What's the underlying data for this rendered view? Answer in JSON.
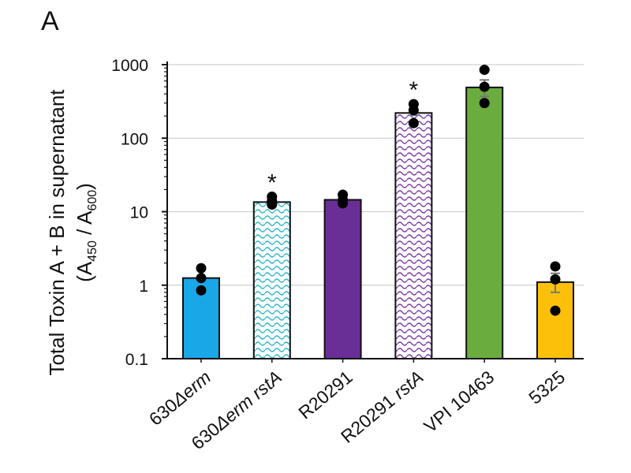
{
  "panel_label": "A",
  "chart_data": {
    "type": "bar",
    "yscale": "log",
    "ylim": [
      0.1,
      1000
    ],
    "yticks": [
      {
        "value": 0.1,
        "label": "0.1"
      },
      {
        "value": 1,
        "label": "1"
      },
      {
        "value": 10,
        "label": "10"
      },
      {
        "value": 100,
        "label": "100"
      },
      {
        "value": 1000,
        "label": "1000"
      }
    ],
    "ylabel_line1": "Total Toxin A + B in supernatant",
    "ylabel_line2": {
      "open": "(A",
      "sub1": "450",
      "mid": " / A",
      "sub2": "600",
      "close": ")"
    },
    "grid": true,
    "categories": [
      {
        "id": "630erm",
        "parts": [
          {
            "t": "630",
            "i": false
          },
          {
            "t": "Δ",
            "i": true
          },
          {
            "t": "erm",
            "i": true
          }
        ]
      },
      {
        "id": "630erm-rsta",
        "parts": [
          {
            "t": "630",
            "i": false
          },
          {
            "t": "Δ",
            "i": true
          },
          {
            "t": "erm rstA",
            "i": true
          }
        ]
      },
      {
        "id": "r20291",
        "parts": [
          {
            "t": "R20291",
            "i": false
          }
        ]
      },
      {
        "id": "r20291-rsta",
        "parts": [
          {
            "t": "R20291 ",
            "i": false
          },
          {
            "t": "rstA",
            "i": true
          }
        ]
      },
      {
        "id": "vpi10463",
        "parts": [
          {
            "t": "VPI 10463",
            "i": false
          }
        ]
      },
      {
        "id": "5325",
        "parts": [
          {
            "t": "5325",
            "i": false
          }
        ]
      }
    ],
    "values": [
      1.25,
      13.5,
      14.5,
      220,
      490,
      1.1
    ],
    "error_high": [
      1.3,
      14.2,
      15.2,
      235,
      620,
      1.45
    ],
    "error_low": [
      1.2,
      12.8,
      13.8,
      205,
      370,
      0.8
    ],
    "points": [
      [
        1.7,
        1.25,
        0.85
      ],
      [
        16,
        14,
        12.5
      ],
      [
        17,
        14.5,
        13
      ],
      [
        290,
        240,
        160
      ],
      [
        850,
        500,
        300
      ],
      [
        1.8,
        1.2,
        0.45
      ]
    ],
    "significance": [
      "",
      "*",
      "",
      "*",
      "",
      ""
    ],
    "colors": {
      "630erm": "#1aa7e8",
      "r20291": "#6a2e97",
      "vpi10463": "#6aad3e",
      "5325": "#fcc00b",
      "hatch_teal": "#2bb7c8",
      "hatch_purple": "#7a3ba8",
      "bar_edge": "#111111",
      "point": "#000000",
      "grid": "#d0d0d0",
      "error": "#777777"
    },
    "fills": [
      "630erm",
      "hatch_teal",
      "r20291",
      "hatch_purple",
      "vpi10463",
      "5325"
    ]
  }
}
